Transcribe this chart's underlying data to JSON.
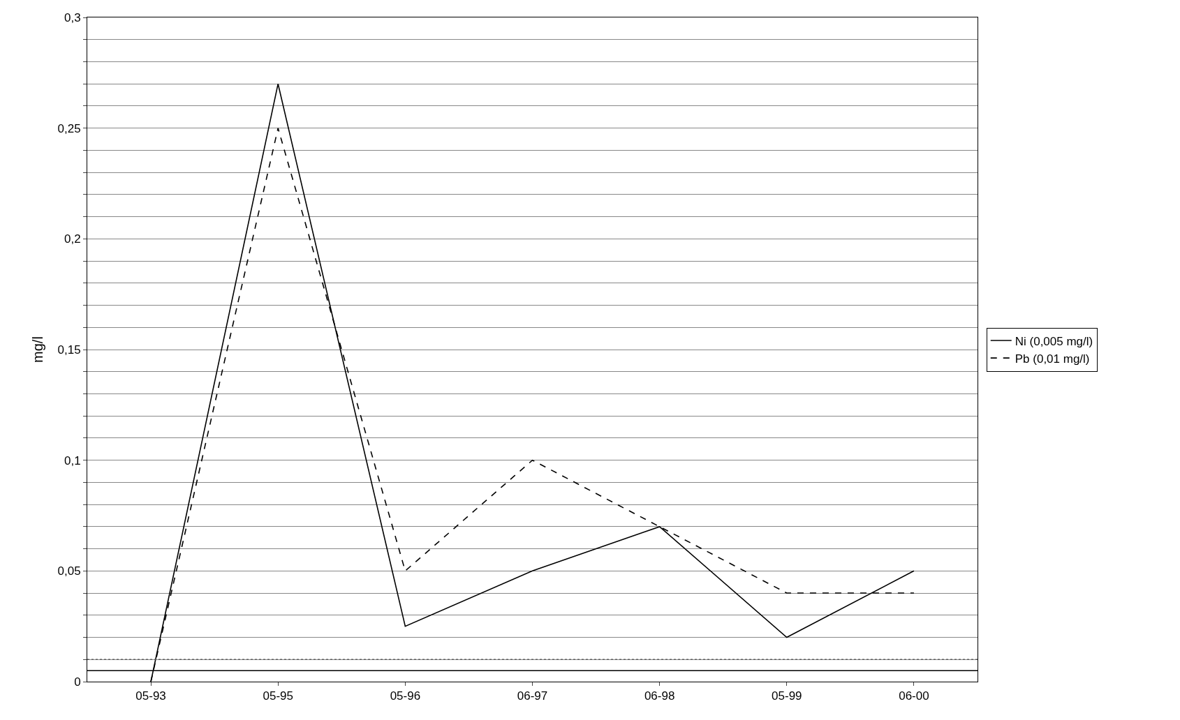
{
  "chart_data": {
    "type": "line",
    "ylabel": "mg/l",
    "categories": [
      "05-93",
      "05-95",
      "05-96",
      "06-97",
      "06-98",
      "05-99",
      "06-00"
    ],
    "series": [
      {
        "name": "Ni (0,005 mg/l)",
        "color": "#000000",
        "line_style": "solid",
        "values": [
          0,
          0.27,
          0.025,
          0.05,
          0.07,
          0.02,
          0.05
        ]
      },
      {
        "name": "Pb (0,01 mg/l)",
        "color": "#000000",
        "line_style": "dashed",
        "values": [
          0,
          0.25,
          0.05,
          0.1,
          0.07,
          0.04,
          0.04
        ]
      }
    ],
    "ylim": [
      0,
      0.3
    ],
    "yticks": [
      {
        "value": 0,
        "label": "0"
      },
      {
        "value": 0.01,
        "label": null
      },
      {
        "value": 0.02,
        "label": null
      },
      {
        "value": 0.03,
        "label": null
      },
      {
        "value": 0.04,
        "label": null
      },
      {
        "value": 0.05,
        "label": "0,05"
      },
      {
        "value": 0.06,
        "label": null
      },
      {
        "value": 0.07,
        "label": null
      },
      {
        "value": 0.08,
        "label": null
      },
      {
        "value": 0.09,
        "label": null
      },
      {
        "value": 0.1,
        "label": "0,1"
      },
      {
        "value": 0.11,
        "label": null
      },
      {
        "value": 0.12,
        "label": null
      },
      {
        "value": 0.13,
        "label": null
      },
      {
        "value": 0.14,
        "label": null
      },
      {
        "value": 0.15,
        "label": "0,15"
      },
      {
        "value": 0.16,
        "label": null
      },
      {
        "value": 0.17,
        "label": null
      },
      {
        "value": 0.18,
        "label": null
      },
      {
        "value": 0.19,
        "label": null
      },
      {
        "value": 0.2,
        "label": "0,2"
      },
      {
        "value": 0.21,
        "label": null
      },
      {
        "value": 0.22,
        "label": null
      },
      {
        "value": 0.23,
        "label": null
      },
      {
        "value": 0.24,
        "label": null
      },
      {
        "value": 0.25,
        "label": "0,25"
      },
      {
        "value": 0.26,
        "label": null
      },
      {
        "value": 0.27,
        "label": null
      },
      {
        "value": 0.28,
        "label": null
      },
      {
        "value": 0.29,
        "label": null
      },
      {
        "value": 0.3,
        "label": "0,3"
      }
    ],
    "grid": "y",
    "legend": "right",
    "marker": "none",
    "ref_lines": [
      {
        "axis": "y",
        "value": 0.005,
        "color": "#000000",
        "line_style": "solid"
      },
      {
        "axis": "y",
        "value": 0.01,
        "color": "#555555",
        "line_style": "dotted"
      }
    ]
  }
}
